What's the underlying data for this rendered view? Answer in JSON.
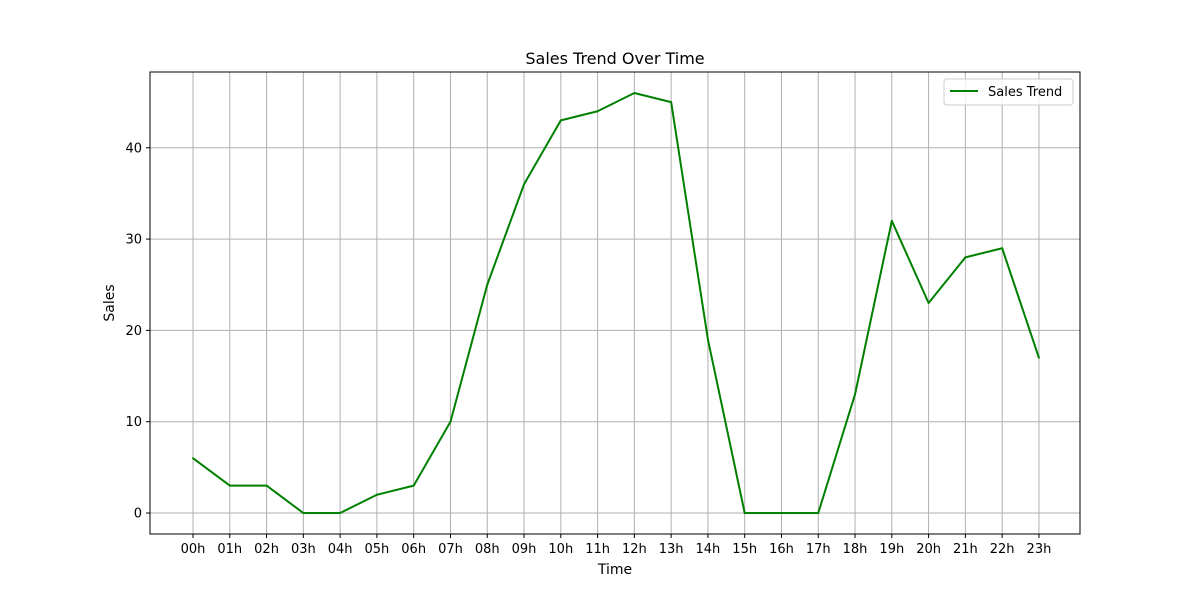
{
  "chart_data": {
    "type": "line",
    "title": "Sales Trend Over Time",
    "xlabel": "Time",
    "ylabel": "Sales",
    "categories": [
      "00h",
      "01h",
      "02h",
      "03h",
      "04h",
      "05h",
      "06h",
      "07h",
      "08h",
      "09h",
      "10h",
      "11h",
      "12h",
      "13h",
      "14h",
      "15h",
      "16h",
      "17h",
      "18h",
      "19h",
      "20h",
      "21h",
      "22h",
      "23h"
    ],
    "series": [
      {
        "name": "Sales Trend",
        "color": "#008000",
        "values": [
          6,
          3,
          3,
          0,
          0,
          2,
          3,
          10,
          25,
          36,
          43,
          44,
          46,
          45,
          19,
          0,
          0,
          0,
          13,
          32,
          23,
          28,
          29,
          17
        ]
      }
    ],
    "yticks": [
      0,
      10,
      20,
      30,
      40
    ],
    "ylim": [
      -2.3,
      48.3
    ],
    "grid": true,
    "legend_position": "top-right",
    "grid_color": "#b0b0b0"
  }
}
